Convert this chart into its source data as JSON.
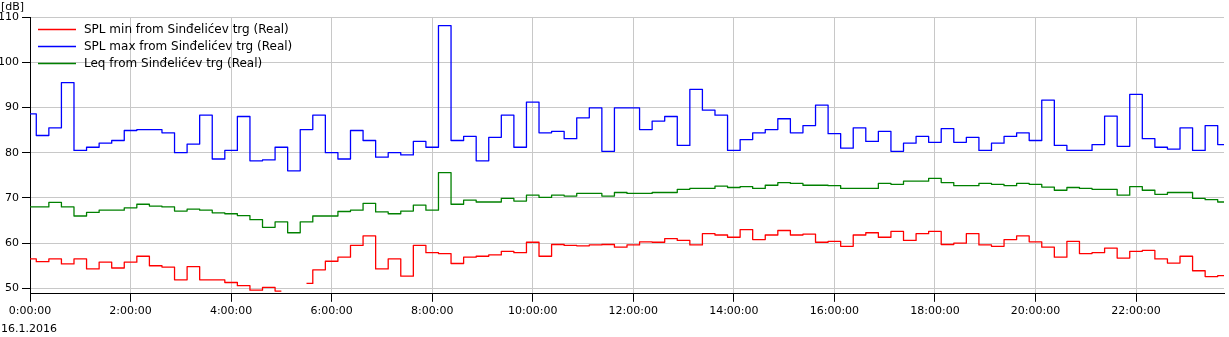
{
  "chart_data": {
    "type": "step",
    "ylabel": "[dB]",
    "annotations": [
      "16.1.2016"
    ],
    "x": [
      0,
      0.25,
      0.5,
      0.75,
      1,
      1.25,
      1.5,
      1.75,
      2,
      2.25,
      2.5,
      2.75,
      3,
      3.25,
      3.5,
      3.75,
      4,
      4.25,
      4.5,
      4.75,
      5,
      5.25,
      5.5,
      5.75,
      6,
      6.25,
      6.5,
      6.75,
      7,
      7.25,
      7.5,
      7.75,
      8,
      8.25,
      8.5,
      8.75,
      9,
      9.25,
      9.5,
      9.75,
      10,
      10.25,
      10.5,
      10.75,
      11,
      11.25,
      11.5,
      11.75,
      12,
      12.25,
      12.5,
      12.75,
      13,
      13.25,
      13.5,
      13.75,
      14,
      14.25,
      14.5,
      14.75,
      15,
      15.25,
      15.5,
      15.75,
      16,
      16.25,
      16.5,
      16.75,
      17,
      17.25,
      17.5,
      17.75,
      18,
      18.25,
      18.5,
      18.75,
      19,
      19.25,
      19.5,
      19.75,
      20,
      20.25,
      20.5,
      20.75,
      21,
      21.25,
      21.5,
      21.75,
      22,
      22.25,
      22.5,
      22.75,
      23,
      23.25,
      23.5,
      23.75
    ],
    "series": [
      {
        "name": "SPL min from Sinđelićev trg (Real)",
        "color": "#ff0000",
        "values": [
          56.5,
          55.9,
          56.5,
          55.4,
          56.5,
          54.3,
          55.8,
          54.5,
          55.8,
          57.1,
          55.0,
          54.7,
          51.9,
          54.8,
          51.9,
          51.9,
          51.3,
          50.6,
          49.6,
          50.2,
          49.4,
          null,
          51.1,
          54.1,
          56.0,
          56.9,
          59.5,
          61.6,
          54.3,
          56.5,
          52.7,
          59.5,
          57.9,
          57.7,
          55.5,
          56.9,
          57.1,
          57.4,
          58.2,
          57.9,
          60.2,
          57.1,
          59.7,
          59.5,
          59.4,
          59.6,
          59.7,
          59.1,
          59.6,
          60.3,
          60.2,
          61.0,
          60.6,
          59.6,
          62.1,
          61.8,
          61.3,
          63.0,
          60.8,
          61.8,
          62.8,
          61.8,
          62.0,
          60.2,
          60.4,
          59.3,
          61.8,
          62.3,
          61.3,
          62.6,
          60.6,
          62.1,
          62.6,
          59.7,
          60.0,
          62.1,
          59.6,
          59.3,
          60.8,
          61.6,
          60.3,
          59.1,
          56.9,
          60.4,
          57.7,
          57.9,
          58.9,
          56.7,
          58.2,
          58.4,
          56.5,
          55.6,
          57.1,
          53.9,
          52.6,
          52.8
        ]
      },
      {
        "name": "SPL max from Sinđelićev trg (Real)",
        "color": "#0000ff",
        "values": [
          88.6,
          83.8,
          85.5,
          95.5,
          80.5,
          81.2,
          82.1,
          82.7,
          84.9,
          85.1,
          85.1,
          84.4,
          80.0,
          81.9,
          88.3,
          78.6,
          80.5,
          88.0,
          78.2,
          78.4,
          81.2,
          76.0,
          85.1,
          88.3,
          80.0,
          78.6,
          84.9,
          82.7,
          79.0,
          80.0,
          79.5,
          82.5,
          81.2,
          108.1,
          82.7,
          83.6,
          78.2,
          83.4,
          88.3,
          81.2,
          91.2,
          84.4,
          84.7,
          83.1,
          87.7,
          89.9,
          80.3,
          89.9,
          89.9,
          85.1,
          87.0,
          88.0,
          81.6,
          94.0,
          89.4,
          88.3,
          80.5,
          82.9,
          84.4,
          85.1,
          87.5,
          84.4,
          86.0,
          90.5,
          84.2,
          81.0,
          85.5,
          82.5,
          84.7,
          80.3,
          82.1,
          83.6,
          82.3,
          85.3,
          82.3,
          83.4,
          80.5,
          82.1,
          83.6,
          84.4,
          82.7,
          91.6,
          81.6,
          80.5,
          80.5,
          81.8,
          88.1,
          81.4,
          92.9,
          83.1,
          81.2,
          80.8,
          85.5,
          80.5,
          86.0,
          81.8
        ]
      },
      {
        "name": "Leq from Sinđelićev trg (Real)",
        "color": "#008000",
        "values": [
          68.0,
          68.0,
          69.0,
          68.0,
          66.0,
          66.8,
          67.3,
          67.3,
          67.8,
          68.6,
          68.2,
          68.0,
          67.1,
          67.5,
          67.3,
          66.7,
          66.5,
          66.1,
          65.2,
          63.5,
          64.7,
          62.3,
          64.7,
          66.0,
          66.0,
          67.0,
          67.3,
          68.8,
          66.9,
          66.5,
          67.1,
          68.4,
          67.3,
          75.6,
          68.6,
          69.5,
          69.1,
          69.1,
          69.9,
          69.3,
          70.6,
          70.1,
          70.6,
          70.4,
          71.0,
          71.0,
          70.4,
          71.2,
          71.0,
          71.0,
          71.2,
          71.2,
          71.9,
          72.1,
          72.1,
          72.6,
          72.3,
          72.5,
          72.1,
          72.8,
          73.4,
          73.2,
          72.8,
          72.8,
          72.7,
          72.1,
          72.1,
          72.1,
          73.2,
          73.0,
          73.7,
          73.7,
          74.3,
          73.4,
          72.7,
          72.7,
          73.2,
          73.0,
          72.7,
          73.2,
          73.0,
          72.4,
          71.7,
          72.3,
          72.1,
          71.9,
          71.9,
          70.6,
          72.5,
          71.7,
          70.8,
          71.2,
          71.2,
          69.9,
          69.6,
          69.1
        ]
      }
    ],
    "xlim": [
      0,
      23.75
    ],
    "xticks": [
      {
        "value": 0,
        "label": "0:00:00"
      },
      {
        "value": 2,
        "label": "2:00:00"
      },
      {
        "value": 4,
        "label": "4:00:00"
      },
      {
        "value": 6,
        "label": "6:00:00"
      },
      {
        "value": 8,
        "label": "8:00:00"
      },
      {
        "value": 10,
        "label": "10:00:00"
      },
      {
        "value": 12,
        "label": "12:00:00"
      },
      {
        "value": 14,
        "label": "14:00:00"
      },
      {
        "value": 16,
        "label": "16:00:00"
      },
      {
        "value": 18,
        "label": "18:00:00"
      },
      {
        "value": 20,
        "label": "20:00:00"
      },
      {
        "value": 22,
        "label": "22:00:00"
      }
    ],
    "ylim": [
      48.8,
      110
    ],
    "yticks": [
      50,
      60,
      70,
      80,
      90,
      100,
      110
    ],
    "grid": true,
    "legend": "top left"
  }
}
